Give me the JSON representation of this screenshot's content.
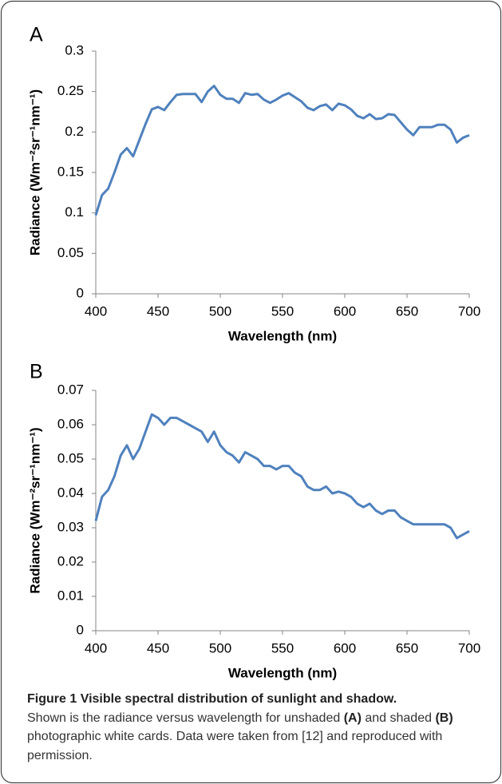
{
  "chart_data": [
    {
      "type": "line",
      "panel_label": "A",
      "xlabel": "Wavelength (nm)",
      "ylabel": "Radiance (Wm⁻²sr⁻¹nm⁻¹)",
      "x": [
        400,
        405,
        410,
        415,
        420,
        425,
        430,
        435,
        440,
        445,
        450,
        455,
        460,
        465,
        470,
        475,
        480,
        485,
        490,
        495,
        500,
        505,
        510,
        515,
        520,
        525,
        530,
        535,
        540,
        545,
        550,
        555,
        560,
        565,
        570,
        575,
        580,
        585,
        590,
        595,
        600,
        605,
        610,
        615,
        620,
        625,
        630,
        635,
        640,
        645,
        650,
        655,
        660,
        665,
        670,
        675,
        680,
        685,
        690,
        695,
        700
      ],
      "series": [
        {
          "color": "#4f81bd",
          "values": [
            0.097,
            0.122,
            0.13,
            0.15,
            0.172,
            0.18,
            0.17,
            0.19,
            0.21,
            0.228,
            0.231,
            0.227,
            0.237,
            0.246,
            0.247,
            0.247,
            0.247,
            0.237,
            0.25,
            0.257,
            0.246,
            0.241,
            0.241,
            0.236,
            0.248,
            0.246,
            0.247,
            0.24,
            0.236,
            0.24,
            0.245,
            0.248,
            0.243,
            0.238,
            0.23,
            0.227,
            0.232,
            0.234,
            0.227,
            0.235,
            0.233,
            0.228,
            0.22,
            0.217,
            0.222,
            0.216,
            0.217,
            0.222,
            0.221,
            0.212,
            0.203,
            0.196,
            0.206,
            0.206,
            0.206,
            0.209,
            0.209,
            0.203,
            0.187,
            0.193,
            0.196
          ]
        }
      ],
      "xlim": [
        400,
        700
      ],
      "xticks": [
        400,
        450,
        500,
        550,
        600,
        650,
        700
      ],
      "ylim": [
        0,
        0.3
      ],
      "yticks": [
        0,
        0.05,
        0.1,
        0.15,
        0.2,
        0.25,
        0.3
      ],
      "grid": false
    },
    {
      "type": "line",
      "panel_label": "B",
      "xlabel": "Wavelength (nm)",
      "ylabel": "Radiance (Wm⁻²sr⁻¹nm⁻¹)",
      "x": [
        400,
        405,
        410,
        415,
        420,
        425,
        430,
        435,
        440,
        445,
        450,
        455,
        460,
        465,
        470,
        475,
        480,
        485,
        490,
        495,
        500,
        505,
        510,
        515,
        520,
        525,
        530,
        535,
        540,
        545,
        550,
        555,
        560,
        565,
        570,
        575,
        580,
        585,
        590,
        595,
        600,
        605,
        610,
        615,
        620,
        625,
        630,
        635,
        640,
        645,
        650,
        655,
        660,
        665,
        670,
        675,
        680,
        685,
        690,
        695,
        700
      ],
      "series": [
        {
          "color": "#4f81bd",
          "values": [
            0.032,
            0.039,
            0.041,
            0.045,
            0.051,
            0.054,
            0.05,
            0.053,
            0.058,
            0.063,
            0.062,
            0.06,
            0.062,
            0.062,
            0.061,
            0.06,
            0.059,
            0.058,
            0.055,
            0.058,
            0.054,
            0.052,
            0.051,
            0.049,
            0.052,
            0.051,
            0.05,
            0.048,
            0.048,
            0.047,
            0.048,
            0.048,
            0.046,
            0.045,
            0.042,
            0.041,
            0.041,
            0.042,
            0.04,
            0.0405,
            0.04,
            0.039,
            0.037,
            0.036,
            0.037,
            0.035,
            0.034,
            0.035,
            0.035,
            0.033,
            0.032,
            0.031,
            0.031,
            0.031,
            0.031,
            0.031,
            0.031,
            0.03,
            0.027,
            0.028,
            0.029
          ]
        }
      ],
      "xlim": [
        400,
        700
      ],
      "xticks": [
        400,
        450,
        500,
        550,
        600,
        650,
        700
      ],
      "ylim": [
        0,
        0.07
      ],
      "yticks": [
        0,
        0.01,
        0.02,
        0.03,
        0.04,
        0.05,
        0.06,
        0.07
      ],
      "grid": false
    }
  ],
  "caption": {
    "label": "Figure 1",
    "title": "Visible spectral distribution of sunlight and shadow.",
    "parts": [
      "Shown is the radiance versus wavelength for unshaded ",
      "(A)",
      " and shaded ",
      "(B)",
      " photographic white cards. Data were taken from [12] and reproduced with permission."
    ]
  }
}
